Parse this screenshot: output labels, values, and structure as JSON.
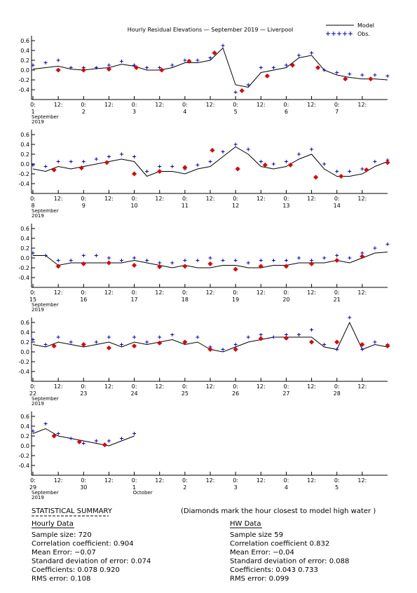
{
  "header": {
    "title": "Hourly Residual Elevations — September 2019 — Liverpool",
    "legend": [
      {
        "name": "Model",
        "color": "#000000"
      },
      {
        "name": "Obs.",
        "color": "#0000cc"
      }
    ]
  },
  "chart_data": [
    {
      "type": "line",
      "ylim": [
        -0.6,
        0.7
      ],
      "yticks": [
        0.6,
        0.4,
        0.2,
        {
          "value": 0,
          "label": "0.0"
        },
        -0.2,
        -0.4
      ],
      "xlim": [
        0,
        168
      ],
      "xticks": [
        {
          "value": 0,
          "label": "0:"
        },
        {
          "value": 12,
          "label": "12:"
        },
        {
          "value": 24,
          "label": "0:"
        },
        {
          "value": 36,
          "label": "12:"
        },
        {
          "value": 48,
          "label": "0:"
        },
        {
          "value": 60,
          "label": "12:"
        },
        {
          "value": 72,
          "label": "0:"
        },
        {
          "value": 84,
          "label": "12:"
        },
        {
          "value": 96,
          "label": "0:"
        },
        {
          "value": 108,
          "label": "12:"
        },
        {
          "value": 120,
          "label": "0:"
        },
        {
          "value": 132,
          "label": "12:"
        },
        {
          "value": 144,
          "label": "0:"
        },
        {
          "value": 156,
          "label": "12:"
        }
      ],
      "day_labels": [
        {
          "value": 0,
          "label": "1"
        },
        {
          "value": 24,
          "label": "2"
        },
        {
          "value": 48,
          "label": "3"
        },
        {
          "value": 72,
          "label": "4"
        },
        {
          "value": 96,
          "label": "5"
        },
        {
          "value": 120,
          "label": "6"
        },
        {
          "value": 144,
          "label": "7"
        }
      ],
      "month_labels": [
        {
          "value": 0,
          "label": "September",
          "year": "2019"
        }
      ],
      "x": [
        0,
        6,
        12,
        18,
        24,
        30,
        36,
        42,
        48,
        54,
        60,
        66,
        72,
        78,
        84,
        90,
        96,
        102,
        108,
        114,
        120,
        126,
        132,
        138,
        144,
        150,
        156,
        162,
        168
      ],
      "series": [
        {
          "color": "#000000",
          "values": [
            0.02,
            0.05,
            0.08,
            0.02,
            0.0,
            0.03,
            0.05,
            0.12,
            0.08,
            0.0,
            0.0,
            0.05,
            0.15,
            0.15,
            0.2,
            0.45,
            -0.3,
            -0.35,
            -0.05,
            0.0,
            0.05,
            0.25,
            0.3,
            0.0,
            -0.1,
            -0.15,
            -0.18,
            -0.18,
            -0.2
          ]
        },
        {
          "color": "#0000cc",
          "values": [
            0.1,
            0.15,
            0.2,
            0.05,
            0.05,
            0.05,
            0.1,
            0.18,
            0.1,
            0.05,
            0.05,
            0.1,
            0.2,
            0.2,
            0.25,
            0.5,
            -0.45,
            -0.3,
            0.05,
            0.05,
            0.1,
            0.3,
            0.35,
            0.0,
            -0.05,
            -0.08,
            -0.1,
            -0.1,
            -0.12
          ]
        }
      ],
      "hw": {
        "color": "#dd0000",
        "x": [
          12,
          24,
          36,
          49,
          61,
          74,
          86,
          99,
          111,
          123,
          135,
          148,
          160
        ],
        "values": [
          0.0,
          0.0,
          0.02,
          0.05,
          0.0,
          0.18,
          0.35,
          -0.42,
          -0.12,
          0.1,
          0.05,
          -0.18,
          -0.18
        ]
      }
    },
    {
      "type": "line",
      "ylim": [
        -0.6,
        0.7
      ],
      "yticks": [
        0.6,
        0.4,
        0.2,
        {
          "value": 0,
          "label": "0.0"
        },
        -0.2,
        -0.4
      ],
      "xlim": [
        0,
        168
      ],
      "xticks": [
        {
          "value": 0,
          "label": "0:"
        },
        {
          "value": 12,
          "label": "12:"
        },
        {
          "value": 24,
          "label": "0:"
        },
        {
          "value": 36,
          "label": "12:"
        },
        {
          "value": 48,
          "label": "0:"
        },
        {
          "value": 60,
          "label": "12:"
        },
        {
          "value": 72,
          "label": "0:"
        },
        {
          "value": 84,
          "label": "12:"
        },
        {
          "value": 96,
          "label": "0:"
        },
        {
          "value": 108,
          "label": "12:"
        },
        {
          "value": 120,
          "label": "0:"
        },
        {
          "value": 132,
          "label": "12:"
        },
        {
          "value": 144,
          "label": "0:"
        },
        {
          "value": 156,
          "label": "12:"
        }
      ],
      "day_labels": [
        {
          "value": 0,
          "label": "8"
        },
        {
          "value": 24,
          "label": "9"
        },
        {
          "value": 48,
          "label": "10"
        },
        {
          "value": 72,
          "label": "11"
        },
        {
          "value": 96,
          "label": "12"
        },
        {
          "value": 120,
          "label": "13"
        },
        {
          "value": 144,
          "label": "14"
        }
      ],
      "month_labels": [
        {
          "value": 0,
          "label": "September",
          "year": "2019"
        }
      ],
      "x": [
        0,
        6,
        12,
        18,
        24,
        30,
        36,
        42,
        48,
        54,
        60,
        66,
        72,
        78,
        84,
        90,
        96,
        102,
        108,
        114,
        120,
        126,
        132,
        138,
        144,
        150,
        156,
        162,
        168
      ],
      "series": [
        {
          "color": "#000000",
          "values": [
            -0.1,
            -0.15,
            -0.05,
            -0.1,
            -0.05,
            0.0,
            0.05,
            0.1,
            0.05,
            -0.25,
            -0.15,
            -0.15,
            -0.2,
            -0.1,
            -0.05,
            0.15,
            0.35,
            0.2,
            -0.05,
            -0.1,
            -0.05,
            0.1,
            0.2,
            -0.1,
            -0.25,
            -0.25,
            -0.2,
            -0.05,
            0.05
          ]
        },
        {
          "color": "#0000cc",
          "values": [
            -0.02,
            -0.05,
            0.05,
            0.05,
            0.05,
            0.1,
            0.15,
            0.2,
            0.15,
            -0.15,
            -0.05,
            -0.05,
            -0.1,
            -0.02,
            0.05,
            0.25,
            0.4,
            0.3,
            0.05,
            0.0,
            0.05,
            0.2,
            0.3,
            0.0,
            -0.15,
            -0.15,
            -0.1,
            0.05,
            0.08
          ]
        }
      ],
      "hw": {
        "color": "#dd0000",
        "x": [
          10,
          23,
          35,
          48,
          60,
          72,
          85,
          97,
          110,
          122,
          134,
          146,
          158,
          168
        ],
        "values": [
          -0.12,
          -0.08,
          0.03,
          -0.2,
          -0.15,
          -0.07,
          0.28,
          -0.1,
          -0.02,
          -0.02,
          -0.27,
          -0.25,
          -0.12,
          0.03
        ]
      }
    },
    {
      "type": "line",
      "ylim": [
        -0.6,
        0.7
      ],
      "yticks": [
        0.6,
        0.4,
        0.2,
        {
          "value": 0,
          "label": "0.0"
        },
        -0.2,
        -0.4
      ],
      "xlim": [
        0,
        168
      ],
      "xticks": [
        {
          "value": 0,
          "label": "0:"
        },
        {
          "value": 12,
          "label": "12:"
        },
        {
          "value": 24,
          "label": "0:"
        },
        {
          "value": 36,
          "label": "12:"
        },
        {
          "value": 48,
          "label": "0:"
        },
        {
          "value": 60,
          "label": "12:"
        },
        {
          "value": 72,
          "label": "0:"
        },
        {
          "value": 84,
          "label": "12:"
        },
        {
          "value": 96,
          "label": "0:"
        },
        {
          "value": 108,
          "label": "12:"
        },
        {
          "value": 120,
          "label": "0:"
        },
        {
          "value": 132,
          "label": "12:"
        },
        {
          "value": 144,
          "label": "0:"
        },
        {
          "value": 156,
          "label": "12:"
        }
      ],
      "day_labels": [
        {
          "value": 0,
          "label": "15"
        },
        {
          "value": 24,
          "label": "16"
        },
        {
          "value": 48,
          "label": "17"
        },
        {
          "value": 72,
          "label": "18"
        },
        {
          "value": 96,
          "label": "19"
        },
        {
          "value": 120,
          "label": "20"
        },
        {
          "value": 144,
          "label": "21"
        }
      ],
      "month_labels": [
        {
          "value": 0,
          "label": "September",
          "year": "2019"
        }
      ],
      "x": [
        0,
        6,
        12,
        18,
        24,
        30,
        36,
        42,
        48,
        54,
        60,
        66,
        72,
        78,
        84,
        90,
        96,
        102,
        108,
        114,
        120,
        126,
        132,
        138,
        144,
        150,
        156,
        162,
        168
      ],
      "series": [
        {
          "color": "#000000",
          "values": [
            0.05,
            0.05,
            -0.15,
            -0.1,
            -0.1,
            -0.1,
            -0.1,
            -0.1,
            -0.05,
            -0.1,
            -0.15,
            -0.2,
            -0.15,
            -0.2,
            -0.2,
            -0.15,
            -0.15,
            -0.2,
            -0.2,
            -0.15,
            -0.15,
            -0.1,
            -0.1,
            -0.1,
            -0.05,
            -0.1,
            0.0,
            0.1,
            0.12
          ]
        },
        {
          "color": "#0000cc",
          "values": [
            0.1,
            0.05,
            -0.05,
            -0.05,
            0.05,
            0.05,
            0.0,
            -0.05,
            0.0,
            -0.05,
            -0.1,
            -0.1,
            -0.05,
            -0.05,
            0.0,
            -0.05,
            -0.05,
            -0.1,
            -0.05,
            -0.05,
            -0.05,
            0.0,
            -0.05,
            0.0,
            0.05,
            0.0,
            0.1,
            0.2,
            0.28
          ]
        }
      ],
      "hw": {
        "color": "#dd0000",
        "x": [
          12,
          24,
          36,
          48,
          60,
          72,
          84,
          96,
          108,
          120,
          132,
          144,
          156
        ],
        "values": [
          -0.17,
          -0.12,
          -0.1,
          -0.15,
          -0.18,
          -0.17,
          -0.12,
          -0.23,
          -0.17,
          -0.17,
          -0.12,
          -0.05,
          0.03
        ]
      }
    },
    {
      "type": "line",
      "ylim": [
        -0.6,
        0.7
      ],
      "yticks": [
        0.6,
        0.4,
        0.2,
        {
          "value": 0,
          "label": "0.0"
        },
        -0.2,
        -0.4
      ],
      "xlim": [
        0,
        168
      ],
      "xticks": [
        {
          "value": 0,
          "label": "0:"
        },
        {
          "value": 12,
          "label": "12:"
        },
        {
          "value": 24,
          "label": "0:"
        },
        {
          "value": 36,
          "label": "12:"
        },
        {
          "value": 48,
          "label": "0:"
        },
        {
          "value": 60,
          "label": "12:"
        },
        {
          "value": 72,
          "label": "0:"
        },
        {
          "value": 84,
          "label": "12:"
        },
        {
          "value": 96,
          "label": "0:"
        },
        {
          "value": 108,
          "label": "12:"
        },
        {
          "value": 120,
          "label": "0:"
        },
        {
          "value": 132,
          "label": "12:"
        },
        {
          "value": 144,
          "label": "0:"
        },
        {
          "value": 156,
          "label": "12:"
        }
      ],
      "day_labels": [
        {
          "value": 0,
          "label": "22"
        },
        {
          "value": 24,
          "label": "23"
        },
        {
          "value": 48,
          "label": "24"
        },
        {
          "value": 72,
          "label": "25"
        },
        {
          "value": 96,
          "label": "26"
        },
        {
          "value": 120,
          "label": "27"
        },
        {
          "value": 144,
          "label": "28"
        }
      ],
      "month_labels": [
        {
          "value": 0,
          "label": "September",
          "year": "2019"
        }
      ],
      "x": [
        0,
        6,
        12,
        18,
        24,
        30,
        36,
        42,
        48,
        54,
        60,
        66,
        72,
        78,
        84,
        90,
        96,
        102,
        108,
        114,
        120,
        126,
        132,
        138,
        144,
        150,
        156,
        162,
        168
      ],
      "series": [
        {
          "color": "#000000",
          "values": [
            0.15,
            0.1,
            0.2,
            0.15,
            0.1,
            0.15,
            0.2,
            0.1,
            0.2,
            0.15,
            0.2,
            0.25,
            0.15,
            0.2,
            0.05,
            0.0,
            0.1,
            0.2,
            0.25,
            0.3,
            0.3,
            0.3,
            0.3,
            0.1,
            0.05,
            0.6,
            0.05,
            0.15,
            0.1
          ]
        },
        {
          "color": "#0000cc",
          "values": [
            0.25,
            0.15,
            0.3,
            0.2,
            0.15,
            0.2,
            0.3,
            0.15,
            0.3,
            0.2,
            0.3,
            0.35,
            0.2,
            0.3,
            0.1,
            0.05,
            0.15,
            0.3,
            0.35,
            0.3,
            0.35,
            0.35,
            0.45,
            0.15,
            0.05,
            0.7,
            0.05,
            0.2,
            0.15
          ]
        }
      ],
      "hw": {
        "color": "#dd0000",
        "x": [
          10,
          24,
          36,
          48,
          60,
          72,
          84,
          96,
          108,
          120,
          132,
          144,
          156,
          168
        ],
        "values": [
          0.12,
          0.15,
          0.08,
          0.12,
          0.18,
          0.2,
          0.05,
          0.05,
          0.27,
          0.28,
          0.2,
          0.2,
          0.15,
          0.12
        ]
      }
    },
    {
      "type": "line",
      "ylim": [
        -0.6,
        0.7
      ],
      "yticks": [
        0.6,
        0.4,
        0.2,
        {
          "value": 0,
          "label": "0.0"
        },
        -0.2,
        -0.4
      ],
      "xlim": [
        0,
        168
      ],
      "xticks": [
        {
          "value": 0,
          "label": "0:"
        },
        {
          "value": 12,
          "label": "12:"
        },
        {
          "value": 24,
          "label": "0:"
        },
        {
          "value": 36,
          "label": "12:"
        },
        {
          "value": 48,
          "label": "0:"
        },
        {
          "value": 60,
          "label": "12:"
        },
        {
          "value": 72,
          "label": "0:"
        },
        {
          "value": 84,
          "label": "12:"
        },
        {
          "value": 96,
          "label": "0:"
        },
        {
          "value": 108,
          "label": "12:"
        },
        {
          "value": 120,
          "label": "0:"
        },
        {
          "value": 132,
          "label": "12:"
        },
        {
          "value": 144,
          "label": "0:"
        },
        {
          "value": 156,
          "label": "12:"
        }
      ],
      "day_labels": [
        {
          "value": 0,
          "label": "29"
        },
        {
          "value": 24,
          "label": "30"
        },
        {
          "value": 48,
          "label": "1"
        },
        {
          "value": 72,
          "label": "2"
        },
        {
          "value": 96,
          "label": "3"
        },
        {
          "value": 120,
          "label": "4"
        },
        {
          "value": 144,
          "label": "5"
        }
      ],
      "month_labels": [
        {
          "value": 0,
          "label": "September",
          "year": "2019"
        },
        {
          "value": 48,
          "label": "October"
        }
      ],
      "x": [
        0,
        6,
        12,
        18,
        24,
        30,
        36,
        42,
        48
      ],
      "series": [
        {
          "color": "#000000",
          "values": [
            0.25,
            0.35,
            0.2,
            0.15,
            0.1,
            0.05,
            0.0,
            0.1,
            0.2
          ]
        },
        {
          "color": "#0000cc",
          "values": [
            0.3,
            0.45,
            0.25,
            0.15,
            0.05,
            0.1,
            0.1,
            0.15,
            0.25
          ]
        }
      ],
      "hw": {
        "color": "#dd0000",
        "x": [
          10,
          22,
          34
        ],
        "values": [
          0.2,
          0.08,
          0.02
        ]
      }
    }
  ],
  "summary": {
    "title": "STATISTICAL SUMMARY",
    "note": "(Diamonds mark the hour closest to model high water )",
    "hourly": {
      "heading": "Hourly Data",
      "lines": [
        "Sample size: 720",
        "Correlation coefficient: 0.904",
        "Mean Error: −0.07",
        "Standard deviation of error: 0.074",
        "Coefficients: 0.078   0.920",
        "RMS error: 0.108"
      ]
    },
    "hw": {
      "heading": "HW Data",
      "lines": [
        "Sample size  59",
        "Correlation coefficient  0.832",
        "Mean Error: −0.04",
        "Standard deviation of error: 0.088",
        "Coefficients: 0.043   0.733",
        "RMS error: 0.099"
      ]
    }
  }
}
